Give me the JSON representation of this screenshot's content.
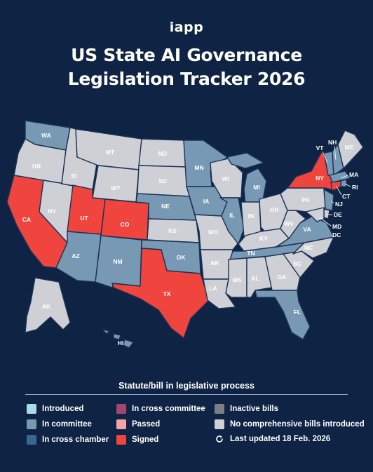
{
  "brand": "iapp",
  "title_line1": "US State AI Governance",
  "title_line2": "Legislation Tracker 2026",
  "colors": {
    "introduced": "#a8dbe6",
    "in_committee": "#7799b4",
    "in_cross_chamber": "#3c6590",
    "in_cross_committee": "#a2466f",
    "passed": "#f2a3a3",
    "signed": "#f0453e",
    "inactive": "#7d7f86",
    "none": "#cfd0d5"
  },
  "legend": {
    "title": "Statute/bill in legislative process",
    "introduced": "Introduced",
    "in_committee": "In committee",
    "in_cross_chamber": "In cross chamber",
    "in_cross_committee": "In cross committee",
    "passed": "Passed",
    "signed": "Signed",
    "inactive": "Inactive bills",
    "none": "No comprehensive bills introduced",
    "updated": "Last updated 18 Feb. 2026"
  },
  "refresh_icon": "refresh-icon",
  "states": {
    "WA": {
      "label": "WA",
      "status": "in_committee"
    },
    "OR": {
      "label": "OR",
      "status": "none"
    },
    "CA": {
      "label": "CA",
      "status": "signed"
    },
    "ID": {
      "label": "ID",
      "status": "none"
    },
    "NV": {
      "label": "NV",
      "status": "none"
    },
    "MT": {
      "label": "MT",
      "status": "none"
    },
    "WY": {
      "label": "WY",
      "status": "none"
    },
    "UT": {
      "label": "UT",
      "status": "signed"
    },
    "CO": {
      "label": "CO",
      "status": "signed"
    },
    "AZ": {
      "label": "AZ",
      "status": "in_committee"
    },
    "NM": {
      "label": "NM",
      "status": "in_committee"
    },
    "ND": {
      "label": "ND",
      "status": "none"
    },
    "SD": {
      "label": "SD",
      "status": "none"
    },
    "NE": {
      "label": "NE",
      "status": "in_committee"
    },
    "KS": {
      "label": "KS",
      "status": "none"
    },
    "OK": {
      "label": "OK",
      "status": "in_committee"
    },
    "TX": {
      "label": "TX",
      "status": "signed"
    },
    "MN": {
      "label": "MN",
      "status": "in_committee"
    },
    "IA": {
      "label": "IA",
      "status": "in_committee"
    },
    "MO": {
      "label": "MO",
      "status": "none"
    },
    "AR": {
      "label": "AR",
      "status": "none"
    },
    "LA": {
      "label": "LA",
      "status": "none"
    },
    "WI": {
      "label": "WI",
      "status": "none"
    },
    "IL": {
      "label": "IL",
      "status": "in_committee"
    },
    "MI": {
      "label": "MI",
      "status": "in_committee"
    },
    "IN": {
      "label": "IN",
      "status": "none"
    },
    "OH": {
      "label": "OH",
      "status": "none"
    },
    "KY": {
      "label": "KY",
      "status": "none"
    },
    "TN": {
      "label": "TN",
      "status": "in_committee"
    },
    "MS": {
      "label": "MS",
      "status": "none"
    },
    "AL": {
      "label": "AL",
      "status": "none"
    },
    "GA": {
      "label": "GA",
      "status": "none"
    },
    "FL": {
      "label": "FL",
      "status": "in_committee"
    },
    "SC": {
      "label": "SC",
      "status": "none"
    },
    "NC": {
      "label": "NC",
      "status": "none"
    },
    "VA": {
      "label": "VA",
      "status": "in_committee"
    },
    "WV": {
      "label": "WV",
      "status": "none"
    },
    "PA": {
      "label": "PA",
      "status": "none"
    },
    "NY": {
      "label": "NY",
      "status": "signed"
    },
    "VT": {
      "label": "VT",
      "status": "in_committee"
    },
    "NH": {
      "label": "NH",
      "status": "in_committee"
    },
    "ME": {
      "label": "ME",
      "status": "none"
    },
    "MA": {
      "label": "MA",
      "status": "in_committee"
    },
    "RI": {
      "label": "RI",
      "status": "in_committee"
    },
    "CT": {
      "label": "CT",
      "status": "signed"
    },
    "NJ": {
      "label": "NJ",
      "status": "in_committee"
    },
    "DE": {
      "label": "DE",
      "status": "none"
    },
    "MD": {
      "label": "MD",
      "status": "none"
    },
    "DC": {
      "label": "DC",
      "status": "none"
    },
    "AK": {
      "label": "AK",
      "status": "none"
    },
    "HI": {
      "label": "HI",
      "status": "in_committee"
    }
  }
}
